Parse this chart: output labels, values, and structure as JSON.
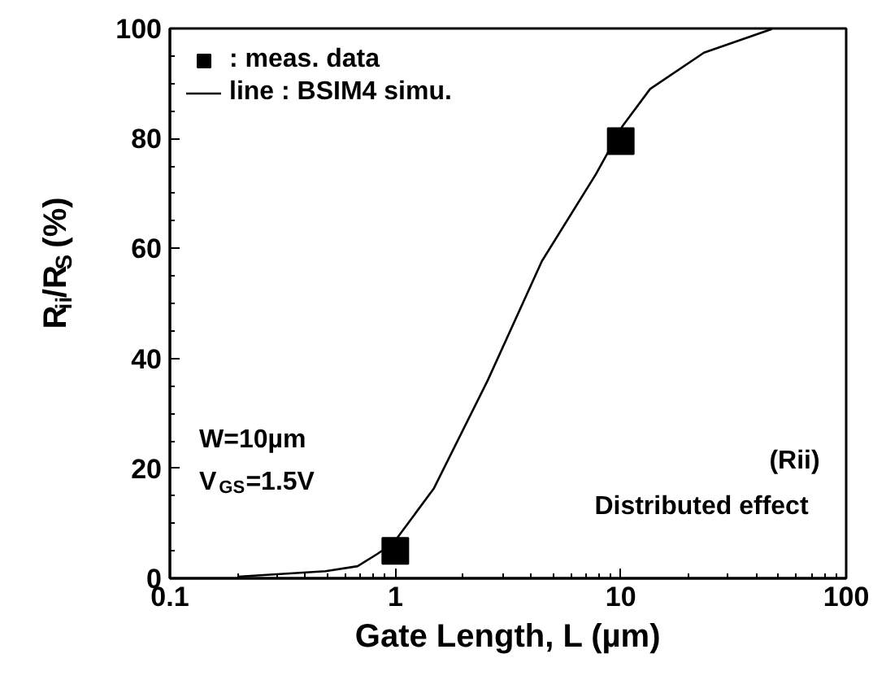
{
  "chart_data": {
    "type": "line",
    "xlabel": "Gate Length, L (µm)",
    "ylabel": "R$_{ii}$/R$_{S}$ (%)",
    "log": "x",
    "xlim": [
      0.1,
      100
    ],
    "xticks": [
      0.1,
      1,
      10,
      100
    ],
    "ylim": [
      0,
      100
    ],
    "yticks": [
      0,
      20,
      40,
      60,
      80,
      100
    ],
    "grid": false,
    "legend": "top left",
    "series": [
      {
        "name": ": meas. data",
        "type": "scatter",
        "marker": "square",
        "color": "#000000",
        "x": [
          1,
          10
        ],
        "values": [
          5,
          79.5
        ]
      },
      {
        "name": "line : BSIM4 simu.",
        "color": "#000000",
        "line_style": "solid",
        "x": [
          0.2,
          0.49,
          0.68,
          0.83,
          0.98,
          1.48,
          2.57,
          4.47,
          7.76,
          10.2,
          13.5,
          23.4,
          46.8
        ],
        "values": [
          0.3,
          1.3,
          2.2,
          4.4,
          6.4,
          16.3,
          36,
          57.7,
          73.5,
          82.3,
          89,
          95.6,
          99.9
        ]
      }
    ],
    "annotations": [
      "W=10µm",
      "V$_{GS}$=1.5V",
      "(Rii)",
      "Distributed effect"
    ]
  }
}
